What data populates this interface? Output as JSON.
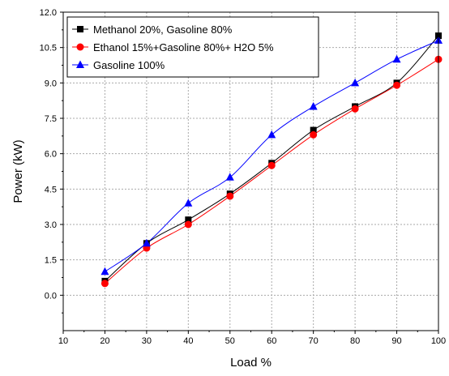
{
  "chart_data": {
    "type": "line",
    "title": "",
    "xlabel": "Load %",
    "ylabel": "Power (kW)",
    "xlim": [
      10,
      100
    ],
    "ylim": [
      -1.5,
      12.0
    ],
    "xticks": [
      "10",
      "20",
      "30",
      "40",
      "50",
      "60",
      "70",
      "80",
      "90",
      "100"
    ],
    "yticks": [
      "0.0",
      "1.5",
      "3.0",
      "4.5",
      "6.0",
      "7.5",
      "9.0",
      "10.5",
      "12.0"
    ],
    "grid": true,
    "legend_position": "top-left",
    "x": [
      20,
      30,
      40,
      50,
      60,
      70,
      80,
      90,
      100
    ],
    "series": [
      {
        "name": "Methanol 20%, Gasoline 80%",
        "color": "#000000",
        "marker": "square",
        "values": [
          0.6,
          2.2,
          3.2,
          4.3,
          5.6,
          7.0,
          8.0,
          9.0,
          11.0
        ]
      },
      {
        "name": "Ethanol 15%+Gasoline 80%+ H2O 5%",
        "color": "#ff0000",
        "marker": "circle",
        "values": [
          0.5,
          2.0,
          3.0,
          4.2,
          5.5,
          6.8,
          7.9,
          8.9,
          10.0
        ]
      },
      {
        "name": "Gasoline 100%",
        "color": "#0000ff",
        "marker": "triangle",
        "values": [
          1.0,
          2.2,
          3.9,
          5.0,
          6.8,
          8.0,
          9.0,
          10.0,
          10.8
        ]
      }
    ]
  }
}
